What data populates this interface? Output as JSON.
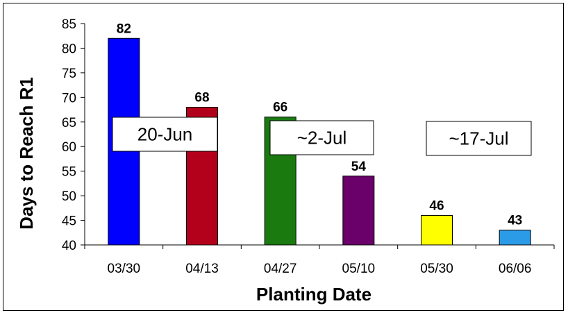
{
  "chart_data": {
    "type": "bar",
    "categories": [
      "03/30",
      "04/13",
      "04/27",
      "05/10",
      "05/30",
      "06/06"
    ],
    "values": [
      82,
      68,
      66,
      54,
      46,
      43
    ],
    "colors": [
      "#0000ff",
      "#b3001b",
      "#1a7a10",
      "#6a006a",
      "#ffff00",
      "#2b9be8"
    ],
    "xlabel": "Planting Date",
    "ylabel": "Days to Reach R1",
    "ylim": [
      40,
      85
    ],
    "yticks": [
      40,
      45,
      50,
      55,
      60,
      65,
      70,
      75,
      80,
      85
    ],
    "grid": false,
    "annotations": [
      "20-Jun",
      "~2-Jul",
      "~17-Jul"
    ]
  }
}
